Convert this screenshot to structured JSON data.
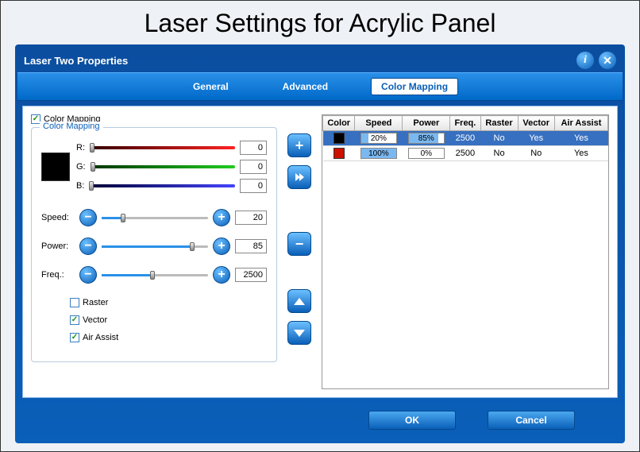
{
  "page_title": "Laser Settings for Acrylic Panel",
  "window_title": "Laser Two Properties",
  "tabs": {
    "general": "General",
    "advanced": "Advanced",
    "color_mapping": "Color Mapping"
  },
  "active_tab": "color_mapping",
  "enable_checkbox_label": "Color Mapping",
  "enable_checked": true,
  "fieldset_label": "Color Mapping",
  "rgb": {
    "r_label": "R:",
    "g_label": "G:",
    "b_label": "B:",
    "r": "0",
    "g": "0",
    "b": "0",
    "r_gradient": "linear-gradient(90deg,#300,#f22)",
    "g_gradient": "linear-gradient(90deg,#030,#2c2)",
    "b_gradient": "linear-gradient(90deg,#003,#44f)",
    "swatch_color": "#000000"
  },
  "params": {
    "speed_label": "Speed:",
    "speed": "20",
    "speed_pct": 20,
    "power_label": "Power:",
    "power": "85",
    "power_pct": 85,
    "freq_label": "Freq.:",
    "freq": "2500",
    "freq_pct": 48
  },
  "opts": {
    "raster_label": "Raster",
    "raster": false,
    "vector_label": "Vector",
    "vector": true,
    "air_label": "Air Assist",
    "air": true
  },
  "columns": {
    "color": "Color",
    "speed": "Speed",
    "power": "Power",
    "freq": "Freq.",
    "raster": "Raster",
    "vector": "Vector",
    "air": "Air Assist"
  },
  "rows": [
    {
      "selected": true,
      "color": "#000000",
      "speed_txt": "20%",
      "speed_pct": 20,
      "power_txt": "85%",
      "power_pct": 85,
      "freq": "2500",
      "raster": "No",
      "vector": "Yes",
      "air": "Yes"
    },
    {
      "selected": false,
      "color": "#cc1100",
      "speed_txt": "100%",
      "speed_pct": 100,
      "power_txt": "0%",
      "power_pct": 0,
      "freq": "2500",
      "raster": "No",
      "vector": "No",
      "air": "Yes"
    }
  ],
  "buttons": {
    "ok": "OK",
    "cancel": "Cancel"
  },
  "colors": {
    "accent": "#0a5fb8",
    "fill": "#7ab8f0"
  }
}
